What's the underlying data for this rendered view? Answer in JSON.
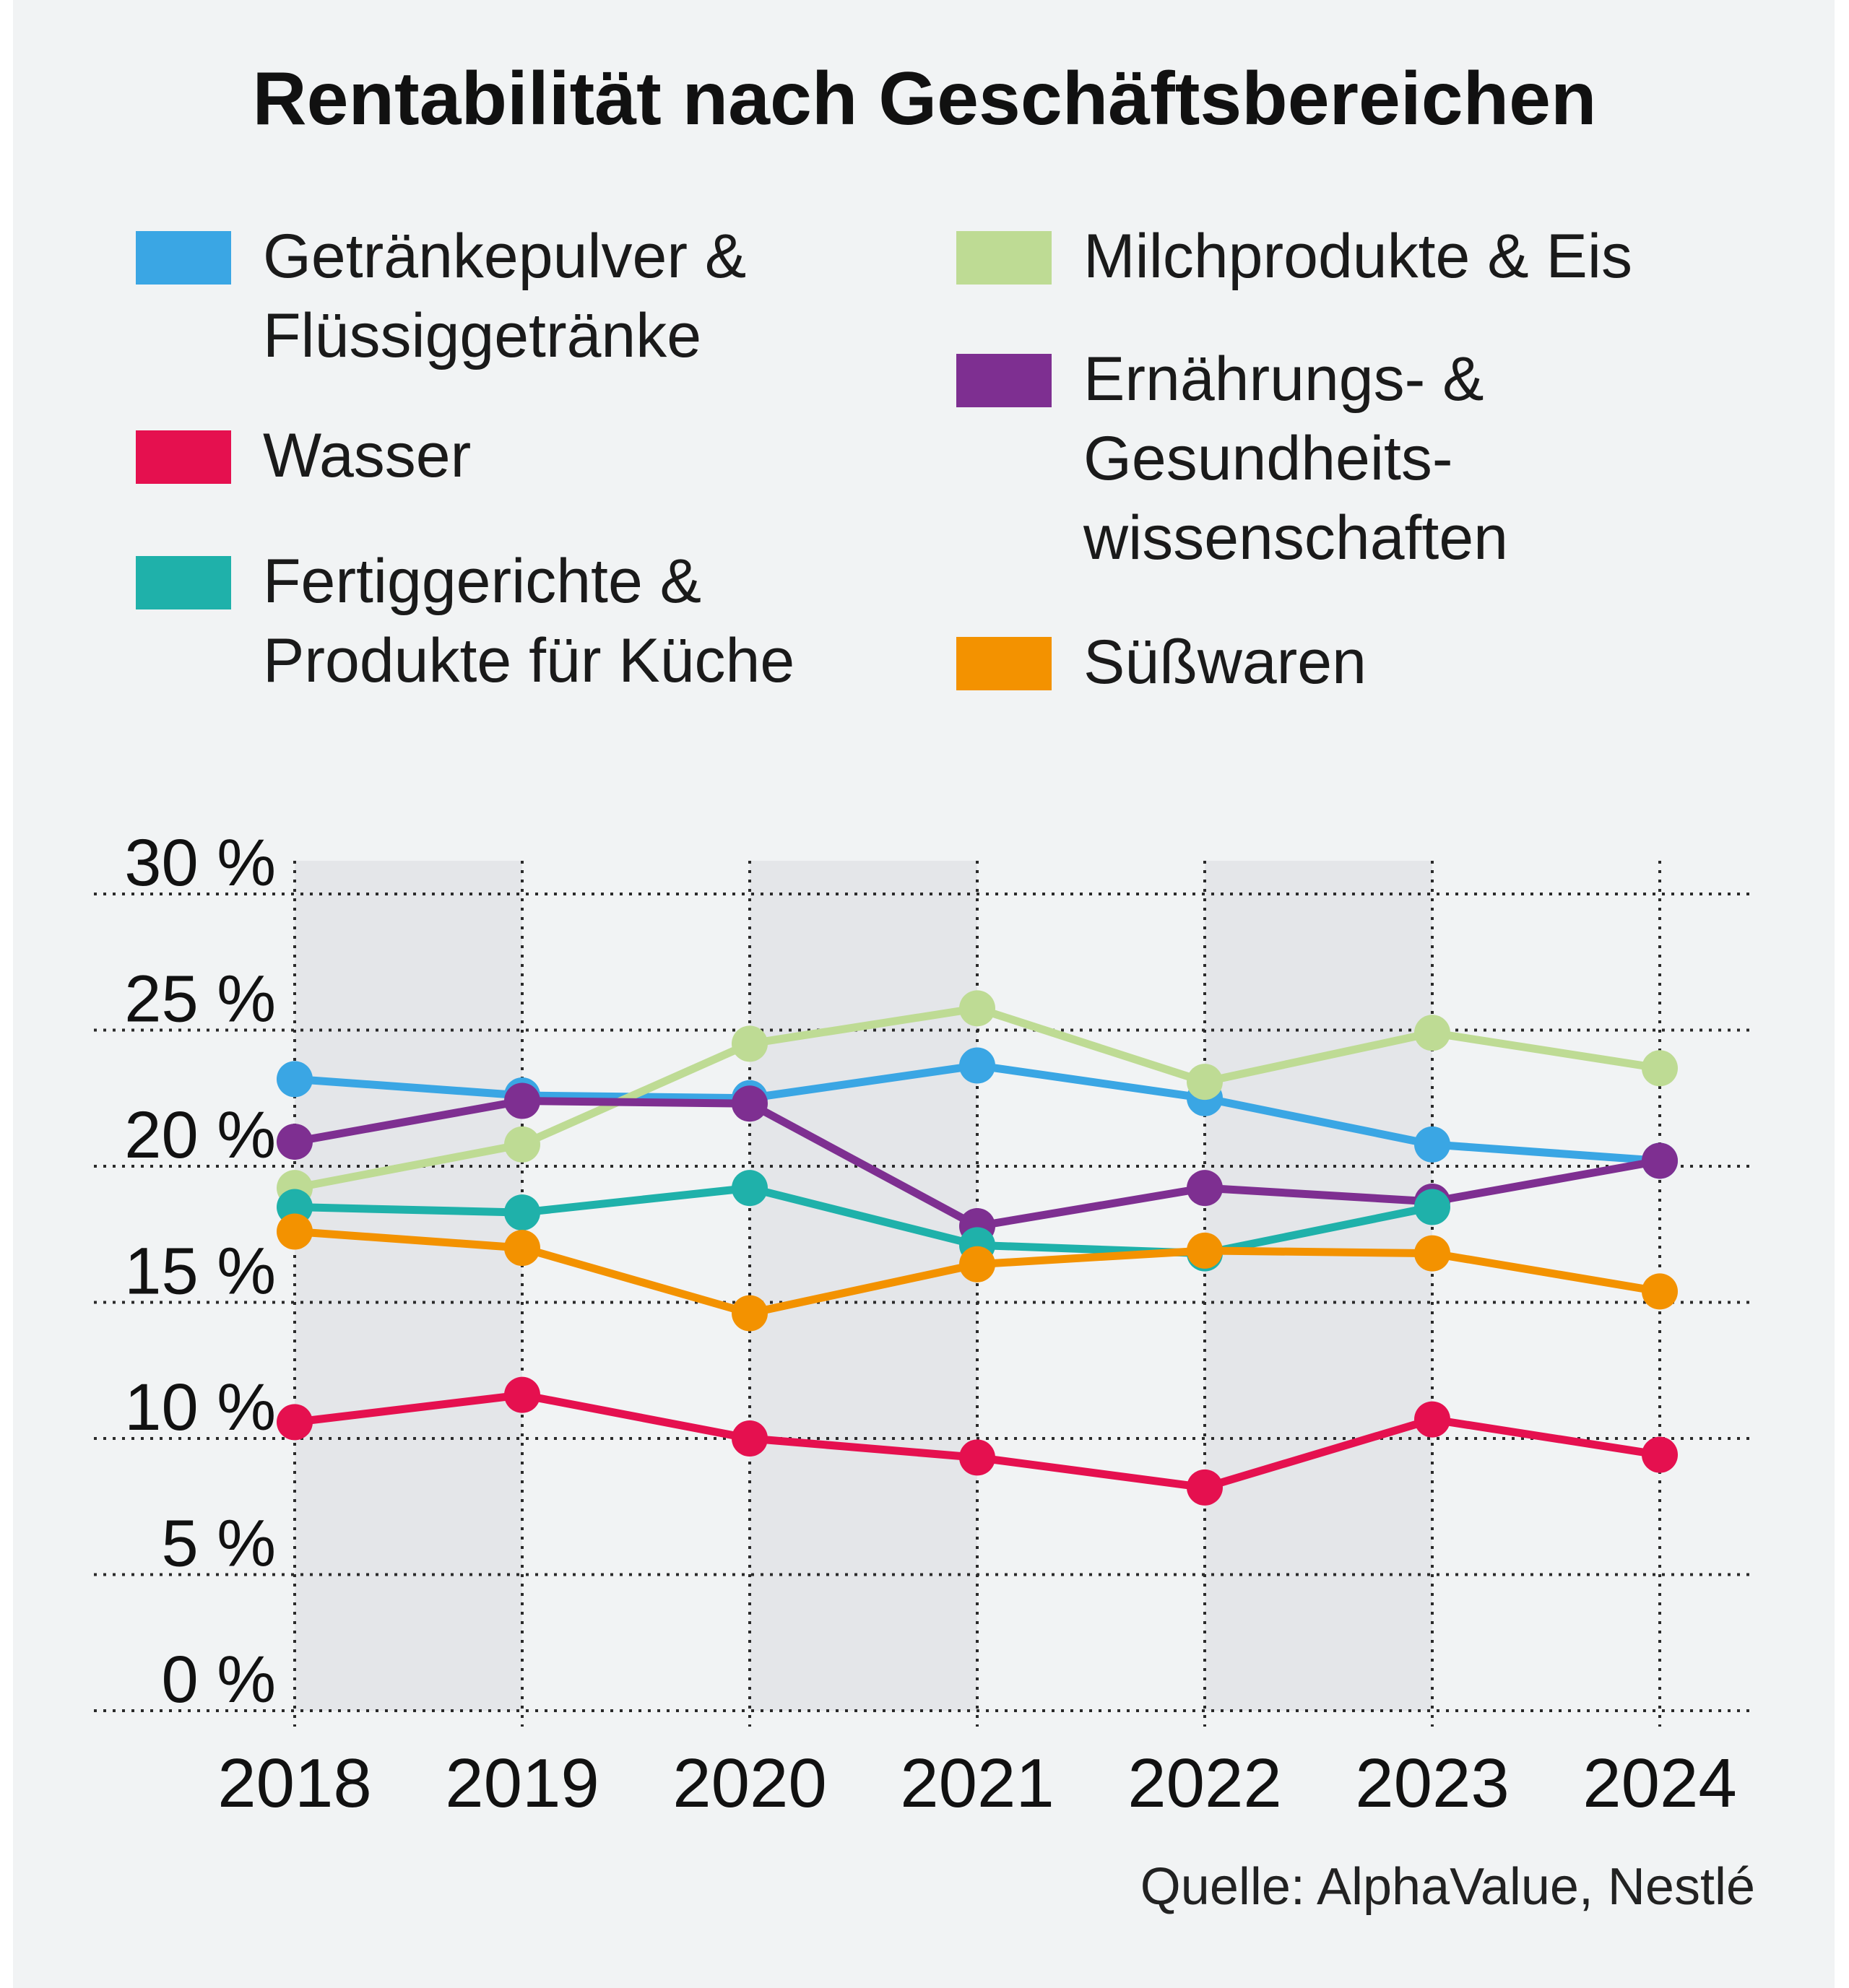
{
  "chart_data": {
    "type": "line",
    "title": "Rentabilität nach Geschäftsbereichen",
    "source": "Quelle: AlphaValue, Nestlé",
    "x": [
      "2018",
      "2019",
      "2020",
      "2021",
      "2022",
      "2023",
      "2024"
    ],
    "ylim": [
      0,
      30
    ],
    "yticks": [
      "0 %",
      "5 %",
      "10 %",
      "15 %",
      "20 %",
      "25 %",
      "30 %"
    ],
    "grid": true,
    "series": [
      {
        "name": "Getränkepulver &\nFlüssiggetränke",
        "color": "#3aa6e4",
        "values": [
          23.2,
          22.6,
          22.5,
          23.7,
          22.5,
          20.8,
          20.2
        ]
      },
      {
        "name": "Milchprodukte & Eis",
        "color": "#bedb94",
        "values": [
          19.2,
          20.8,
          24.5,
          25.8,
          23.1,
          24.9,
          23.6
        ]
      },
      {
        "name": "Wasser",
        "color": "#e5104f",
        "values": [
          10.6,
          11.6,
          10.0,
          9.3,
          8.2,
          10.7,
          9.4
        ]
      },
      {
        "name": "Ernährungs- &\nGesundheits-\nwissenschaften",
        "color": "#7e2f91",
        "values": [
          20.9,
          22.4,
          22.3,
          17.8,
          19.2,
          18.7,
          20.2
        ]
      },
      {
        "name": "Fertiggerichte &\nProdukte für Küche",
        "color": "#1fb1aa",
        "values": [
          18.5,
          18.3,
          19.2,
          17.1,
          16.8,
          18.5,
          null
        ]
      },
      {
        "name": "Süßwaren",
        "color": "#f39200",
        "values": [
          17.6,
          17.0,
          14.6,
          16.4,
          16.9,
          16.8,
          15.4
        ]
      }
    ]
  }
}
